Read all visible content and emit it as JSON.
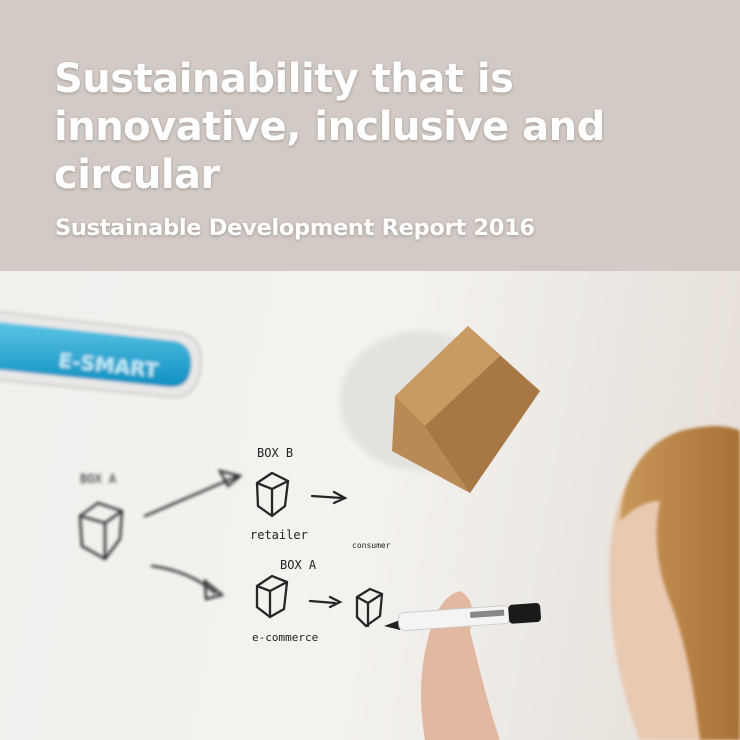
{
  "cover": {
    "title": "Sustainability that is innovative, inclusive and circular",
    "subtitle": "Sustainable Development Report 2016",
    "header_color": "#d2cac4"
  },
  "photo": {
    "sign_label": "E-SMART",
    "sign_color": "#1aa3cf",
    "sketch": {
      "box_a_top": "BOX A",
      "box_b": "BOX B",
      "retailer": "retailer",
      "consumer": "consumer",
      "box_a_bottom": "BOX A",
      "ecommerce": "e-commerce"
    }
  }
}
